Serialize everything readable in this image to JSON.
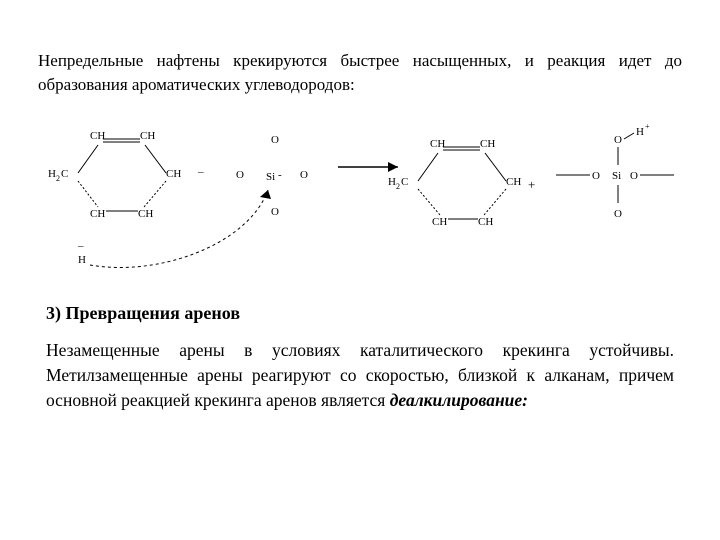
{
  "intro": "Непредельные нафтены крекируются быстрее насыщенных, и реакция идет до образования ароматических углеводородов:",
  "heading": "3) Превращения аренов",
  "body_html": "Незамещенные арены в условиях каталитического крекинга устойчивы. Метилзамещенные арены реагируют со скоростью, близкой к алканам, причем основной реакцией крекинга аренов является <em>деалкилирование:</em>",
  "diagram": {
    "colors": {
      "stroke": "#000000",
      "text": "#000000",
      "bg": "#ffffff"
    },
    "left_ring": {
      "labels": {
        "top_left": "CH",
        "top_right": "CH",
        "left": "H",
        "left_sub": "2",
        "left2": "C",
        "right": "CH",
        "bot_left": "CH",
        "bot_right": "CH",
        "hydride": "H",
        "minus_top": "–",
        "sep": "–"
      }
    },
    "si_left": {
      "center": "Si",
      "minus": "-",
      "o": "O"
    },
    "arrow": {
      "style": "long"
    },
    "right_ring": {
      "labels": {
        "top_left": "CH",
        "top_right": "CH",
        "left": "H",
        "left_sub": "2",
        "left2": "C",
        "right": "CH",
        "bot_left": "CH",
        "bot_right": "CH",
        "plus": "+"
      }
    },
    "si_right": {
      "center": "Si",
      "o": "O",
      "h_plus": "H",
      "plus_sup": "+"
    }
  }
}
